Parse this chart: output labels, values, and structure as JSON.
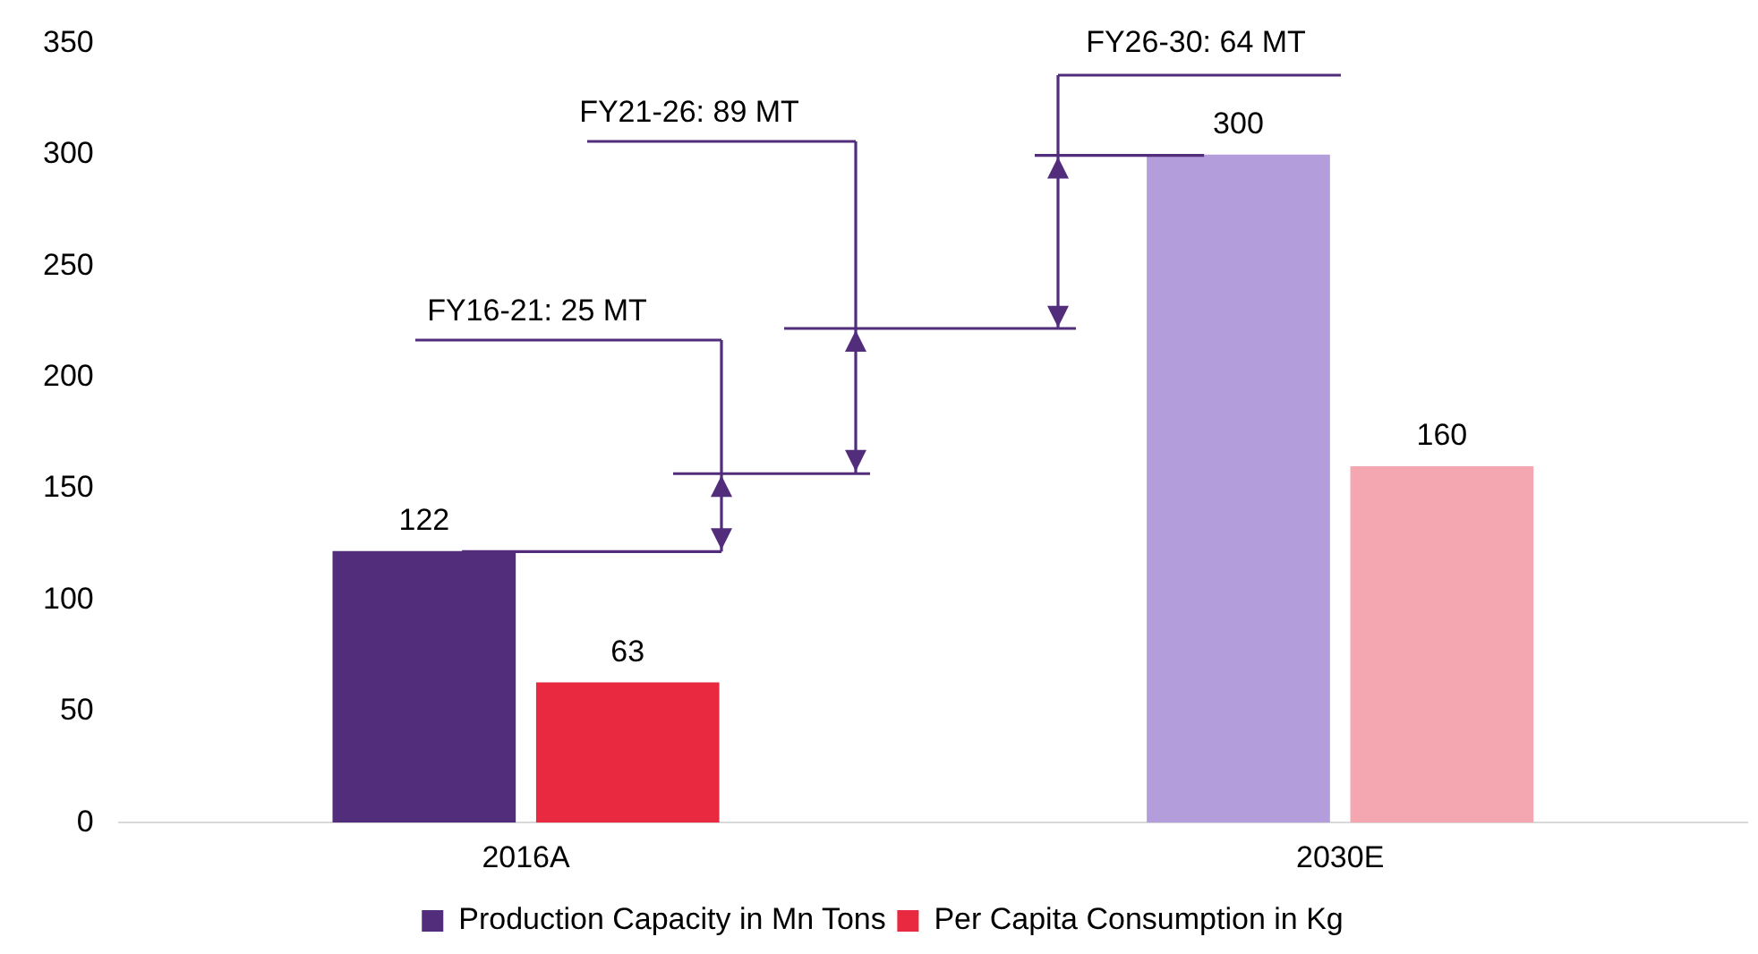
{
  "chart_data": {
    "type": "bar",
    "categories": [
      "2016A",
      "2030E"
    ],
    "series": [
      {
        "name": "Production Capacity in Mn Tons",
        "color": "#512d7c",
        "colors": [
          "#512d7c",
          "#b39ddb"
        ],
        "values": [
          122,
          300
        ]
      },
      {
        "name": "Per Capita Consumption in Kg",
        "color": "#e8293f",
        "colors": [
          "#e8293f",
          "#f4a7b0"
        ],
        "values": [
          63,
          160
        ]
      }
    ],
    "ylim": [
      0,
      350
    ],
    "yticks": [
      0,
      50,
      100,
      150,
      200,
      250,
      300,
      350
    ],
    "grid": false,
    "legend": "bottom",
    "data_labels": true,
    "annotations": [
      "FY16-21: 25 MT",
      "FY21-26: 89 MT",
      "FY26-30: 64 MT"
    ]
  }
}
